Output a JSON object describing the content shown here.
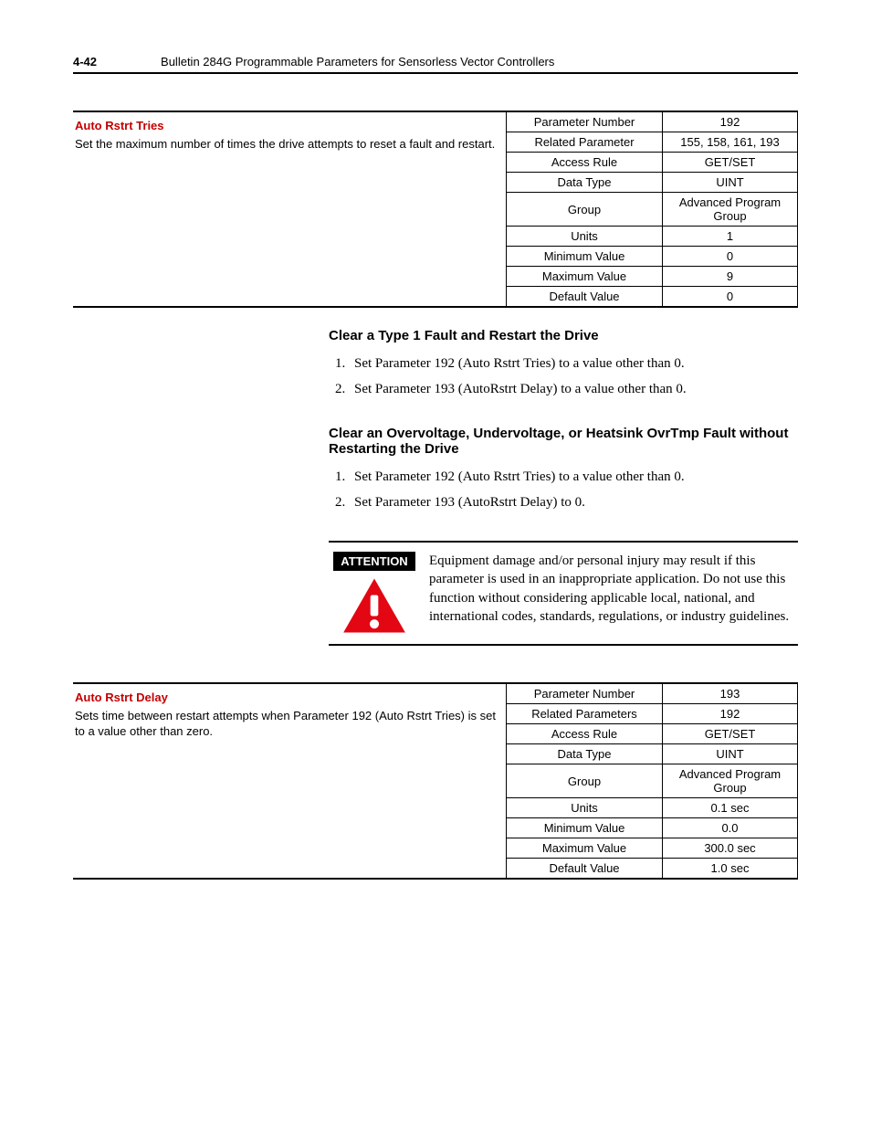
{
  "header": {
    "page_number": "4-42",
    "title": "Bulletin 284G Programmable Parameters for Sensorless Vector Controllers"
  },
  "param1": {
    "name": "Auto Rstrt Tries",
    "description": "Set the maximum number of times the drive attempts to reset a fault and restart.",
    "rows": [
      {
        "label": "Parameter Number",
        "value": "192"
      },
      {
        "label": "Related Parameter",
        "value": "155, 158, 161, 193"
      },
      {
        "label": "Access Rule",
        "value": "GET/SET"
      },
      {
        "label": "Data Type",
        "value": "UINT"
      },
      {
        "label": "Group",
        "value": "Advanced Program Group"
      },
      {
        "label": "Units",
        "value": "1"
      },
      {
        "label": "Minimum Value",
        "value": "0"
      },
      {
        "label": "Maximum Value",
        "value": "9"
      },
      {
        "label": "Default Value",
        "value": "0"
      }
    ]
  },
  "section1": {
    "heading": "Clear a Type 1 Fault and Restart the Drive",
    "steps": [
      "Set Parameter 192 (Auto Rstrt Tries) to a value other than 0.",
      "Set Parameter 193 (AutoRstrt Delay) to a value other than 0."
    ]
  },
  "section2": {
    "heading": "Clear an Overvoltage, Undervoltage, or Heatsink OvrTmp Fault without Restarting the Drive",
    "steps": [
      "Set Parameter 192 (Auto Rstrt Tries) to a value other than 0.",
      "Set Parameter 193 (AutoRstrt Delay) to 0."
    ]
  },
  "attention": {
    "label": "ATTENTION",
    "body": "Equipment damage and/or personal injury may result if this parameter is used in an inappropriate application. Do not use this function without considering applicable local, national, and international codes, standards, regulations, or industry guidelines.",
    "icon_fill": "#e30613",
    "icon_bang": "#ffffff"
  },
  "param2": {
    "name": "Auto Rstrt Delay",
    "description": "Sets time between restart attempts when Parameter 192 (Auto Rstrt Tries) is set to a value other than zero.",
    "rows": [
      {
        "label": "Parameter Number",
        "value": "193"
      },
      {
        "label": "Related Parameters",
        "value": "192"
      },
      {
        "label": "Access Rule",
        "value": "GET/SET"
      },
      {
        "label": "Data Type",
        "value": "UINT"
      },
      {
        "label": "Group",
        "value": "Advanced Program Group"
      },
      {
        "label": "Units",
        "value": "0.1 sec"
      },
      {
        "label": "Minimum Value",
        "value": "0.0"
      },
      {
        "label": "Maximum Value",
        "value": "300.0 sec"
      },
      {
        "label": "Default Value",
        "value": "1.0 sec"
      }
    ]
  }
}
